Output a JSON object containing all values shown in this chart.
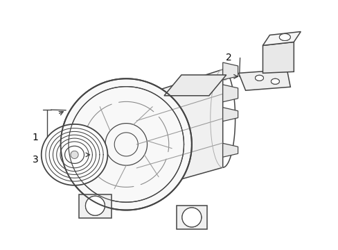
{
  "background_color": "#ffffff",
  "line_color": "#444444",
  "line_width": 1.1,
  "label_1": "1",
  "label_2": "2",
  "label_3": "3",
  "label_fontsize": 10,
  "figsize": [
    4.89,
    3.6
  ],
  "dpi": 100
}
